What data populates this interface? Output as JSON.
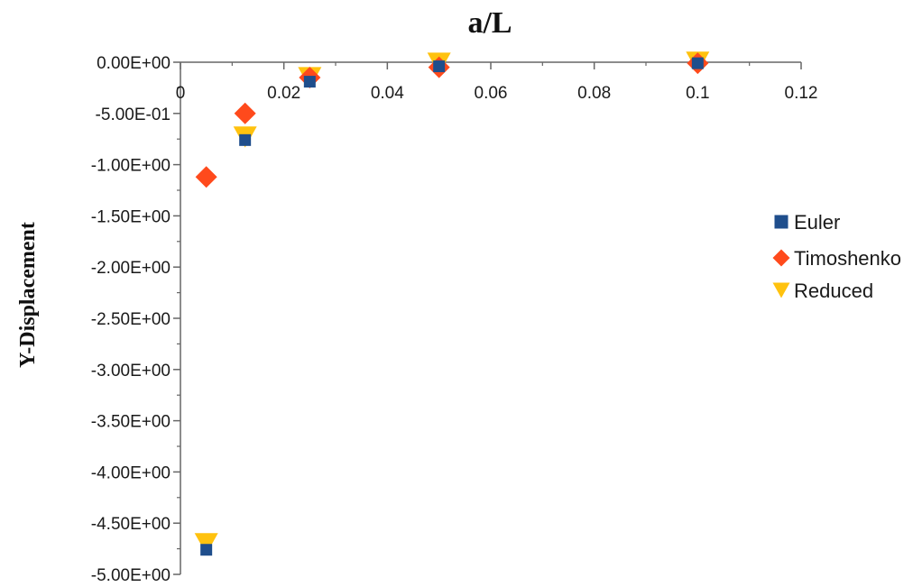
{
  "chart_data": {
    "type": "scatter",
    "title": "",
    "xlabel": "a/L",
    "ylabel": "Y-Displacement",
    "xlim": [
      0,
      0.12
    ],
    "ylim": [
      -5.0,
      0.0
    ],
    "x_ticks": [
      "0",
      "0.02",
      "0.04",
      "0.06",
      "0.08",
      "0.1",
      "0.12"
    ],
    "x_tick_values": [
      0,
      0.02,
      0.04,
      0.06,
      0.08,
      0.1,
      0.12
    ],
    "y_ticks": [
      "0.00E+00",
      "-5.00E-01",
      "-1.00E+00",
      "-1.50E+00",
      "-2.00E+00",
      "-2.50E+00",
      "-3.00E+00",
      "-3.50E+00",
      "-4.00E+00",
      "-4.50E+00",
      "-5.00E+00"
    ],
    "y_tick_values": [
      0,
      -0.5,
      -1.0,
      -1.5,
      -2.0,
      -2.5,
      -3.0,
      -3.5,
      -4.0,
      -4.5,
      -5.0
    ],
    "x_axis_position": "top",
    "grid": false,
    "legend_position": "right",
    "series": [
      {
        "name": "Euler",
        "marker": "square",
        "color": "#1f4e8c",
        "x": [
          0.005,
          0.0125,
          0.025,
          0.05,
          0.1
        ],
        "y": [
          -4.76,
          -0.76,
          -0.19,
          -0.04,
          -0.01
        ]
      },
      {
        "name": "Timoshenko",
        "marker": "diamond",
        "color": "#ff4a1c",
        "x": [
          0.005,
          0.0125,
          0.025,
          0.05,
          0.1
        ],
        "y": [
          -1.12,
          -0.5,
          -0.15,
          -0.05,
          -0.01
        ]
      },
      {
        "name": "Reduced",
        "marker": "triangle-down",
        "color": "#ffc20e",
        "x": [
          0.005,
          0.0125,
          0.025,
          0.05,
          0.1
        ],
        "y": [
          -4.7,
          -0.73,
          -0.15,
          -0.01,
          0.0
        ]
      }
    ]
  }
}
